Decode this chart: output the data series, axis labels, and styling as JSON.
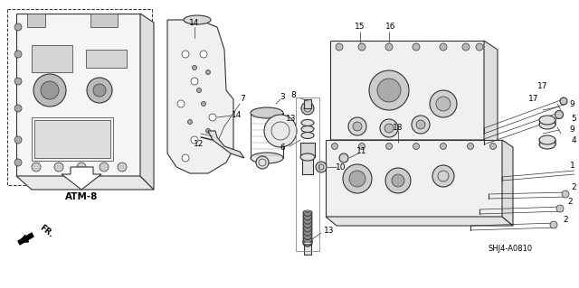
{
  "bg_color": "#ffffff",
  "fig_width": 6.4,
  "fig_height": 3.19,
  "dpi": 100,
  "atm_label": "ATM-8",
  "fr_label": "FR.",
  "diagram_code": "SHJ4-A0810",
  "line_color": "#333333",
  "gray": "#888888",
  "darkgray": "#555555"
}
